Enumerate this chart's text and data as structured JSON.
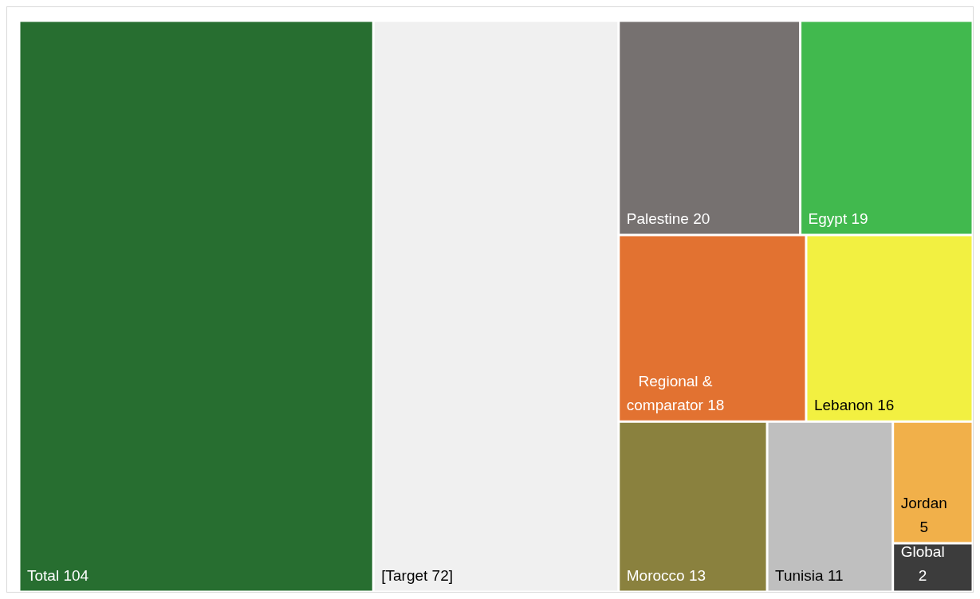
{
  "chart_data": {
    "type": "other",
    "categories": [
      "Total",
      "[Target",
      "Palestine",
      "Egypt",
      "Regional & comparator",
      "Lebanon",
      "Morocco",
      "Tunisia",
      "Jordan",
      "Global"
    ],
    "values": [
      104,
      72,
      20,
      19,
      18,
      16,
      13,
      11,
      5,
      2
    ],
    "value_labels": [
      "104",
      "72]",
      "20",
      "19",
      "18",
      "16",
      "13",
      "11",
      "5",
      "2"
    ],
    "data_labels": true,
    "colors": [
      "#276e30",
      "#f0f0f0",
      "#767170",
      "#41b94e",
      "#e27231",
      "#f2f041",
      "#8a813e",
      "#bfbfbf",
      "#f1b04a",
      "#3c3c3c"
    ]
  }
}
